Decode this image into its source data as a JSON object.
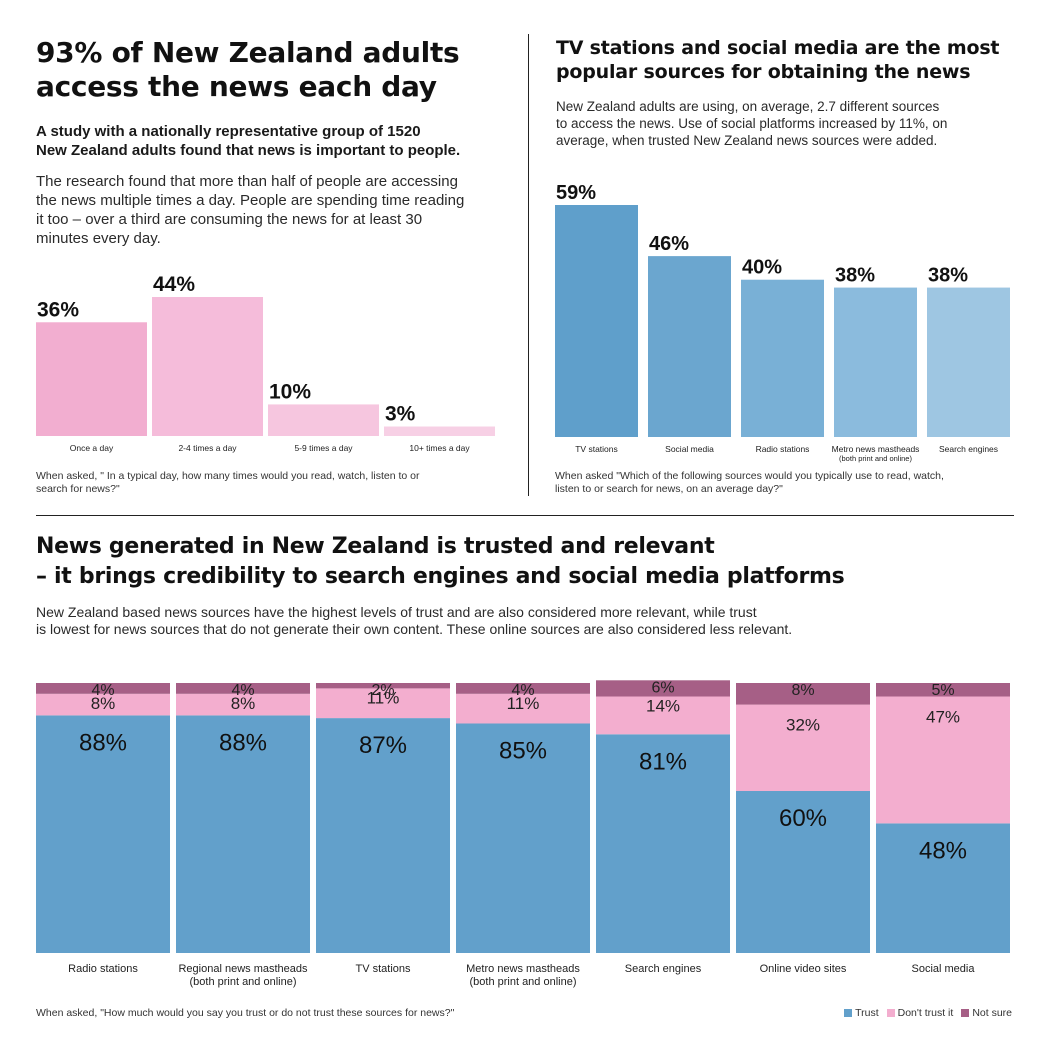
{
  "top_left": {
    "title_line1": "93% of New Zealand adults",
    "title_line2": "access the news each day",
    "lead_line1": "A study with a nationally representative group of 1520",
    "lead_line2": "New Zealand adults found that news is important to people.",
    "body_line1": "The research found that more than half of people are accessing",
    "body_line2": "the news multiple times a day. People are spending time reading",
    "body_line3": "it too – over a third are consuming the news for at least 30",
    "body_line4": "minutes every day.",
    "note_line1": "When asked, \" In a typical day, how many times would you read, watch, listen to or",
    "note_line2": "search for news?\""
  },
  "top_right": {
    "title_line1": "TV stations and social media are the most",
    "title_line2": "popular sources for obtaining the news",
    "body_line1": "New Zealand adults are using, on average, 2.7 different sources",
    "body_line2": "to access the news. Use of social platforms increased by 11%, on",
    "body_line3": "average, when trusted New Zealand news sources were added.",
    "note_line1": "When asked \"Which of the following sources would you typically use to read, watch,",
    "note_line2": "listen to or search for news, on an average day?\""
  },
  "bottom": {
    "title_line1": "News generated in New Zealand is trusted and relevant",
    "title_line2": "– it brings credibility to search engines and social media platforms",
    "body_line1": "New Zealand based news sources have the highest levels of trust and are also considered more relevant, while trust",
    "body_line2": "is lowest for news sources that do not generate their own content. These online sources are also considered less relevant.",
    "note": "When asked, \"How much would you say you trust or do not trust these sources for news?\""
  },
  "colors": {
    "frequency": [
      "#f2aed0",
      "#f5bcda",
      "#f6c6df",
      "#f7d0e5"
    ],
    "sources": [
      "#5f9fcb",
      "#6ba6cf",
      "#79b0d6",
      "#8bbbdd",
      "#9ec6e2"
    ],
    "trust": "#62a0cb",
    "dont_trust": "#f3aecf",
    "not_sure": "#a65f86"
  },
  "chart_data": [
    {
      "type": "bar",
      "categories": [
        "Once a day",
        "2-4 times a day",
        "5-9 times a day",
        "10+ times a day"
      ],
      "values": [
        36,
        44,
        10,
        3
      ],
      "value_labels": [
        "36%",
        "44%",
        "10%",
        "3%"
      ],
      "ylim": [
        0,
        44
      ]
    },
    {
      "type": "bar",
      "categories": [
        [
          "TV stations"
        ],
        [
          "Social media"
        ],
        [
          "Radio stations"
        ],
        [
          "Metro news mastheads",
          "(both print and online)"
        ],
        [
          "Search engines"
        ]
      ],
      "values": [
        59,
        46,
        40,
        38,
        38
      ],
      "value_labels": [
        "59%",
        "46%",
        "40%",
        "38%",
        "38%"
      ],
      "ylim": [
        0,
        59
      ]
    },
    {
      "type": "bar",
      "stacked": true,
      "categories": [
        [
          "Radio stations"
        ],
        [
          "Regional news mastheads",
          "(both print and online)"
        ],
        [
          "TV stations"
        ],
        [
          "Metro news mastheads",
          "(both print and online)"
        ],
        [
          "Search engines"
        ],
        [
          "Online video sites"
        ],
        [
          "Social media"
        ]
      ],
      "series": [
        {
          "name": "Trust",
          "values": [
            88,
            88,
            87,
            85,
            81,
            60,
            48
          ],
          "labels": [
            "88%",
            "88%",
            "87%",
            "85%",
            "81%",
            "60%",
            "48%"
          ]
        },
        {
          "name": "Don't trust it",
          "values": [
            8,
            8,
            11,
            11,
            14,
            32,
            47
          ],
          "labels": [
            "8%",
            "8%",
            "11%",
            "11%",
            "14%",
            "32%",
            "47%"
          ]
        },
        {
          "name": "Not sure",
          "values": [
            4,
            4,
            2,
            4,
            6,
            8,
            5
          ],
          "labels": [
            "4%",
            "4%",
            "2%",
            "4%",
            "6%",
            "8%",
            "5%"
          ]
        }
      ],
      "ylim": [
        0,
        100
      ],
      "legend": "bottom-right"
    }
  ]
}
